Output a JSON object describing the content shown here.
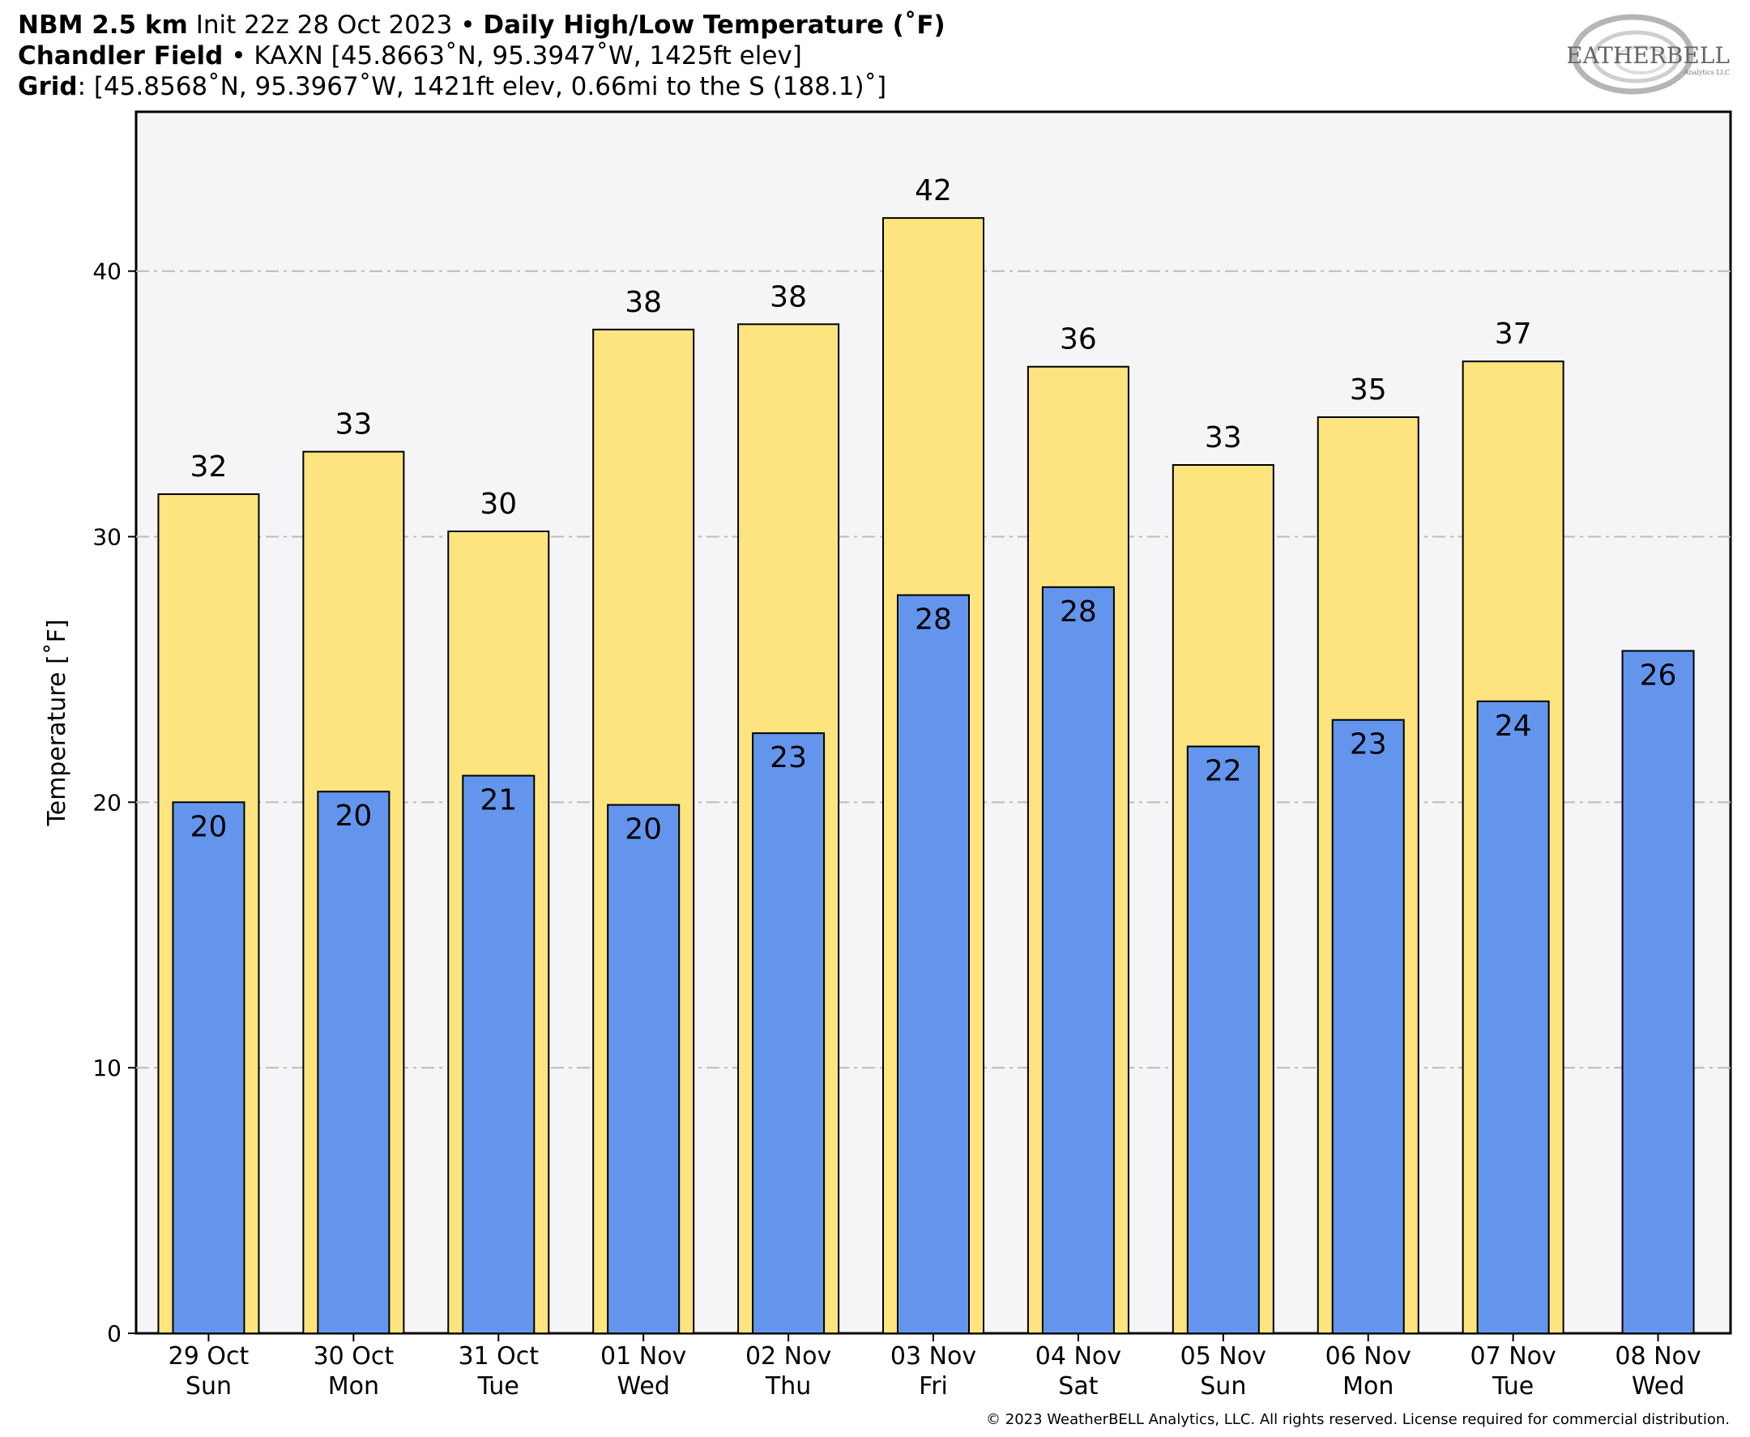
{
  "header": {
    "line1_model": "NBM 2.5 km",
    "line1_init": "Init 22z 28 Oct 2023",
    "line1_sep": "•",
    "line1_product": "Daily High/Low Temperature (˚F)",
    "line2_station": "Chandler Field",
    "line2_sep": "•",
    "line2_info": "KAXN [45.8663˚N, 95.3947˚W, 1425ft elev]",
    "line3_label": "Grid",
    "line3_info": ": [45.8568˚N, 95.3967˚W, 1421ft elev, 0.66mi to the S (188.1)˚]"
  },
  "logo": {
    "text": "WEATHERBELL",
    "subtext": "Analytics LLC"
  },
  "copyright": "© 2023 WeatherBELL Analytics, LLC. All rights reserved. License required for commercial distribution.",
  "colors": {
    "high": "#fde47f",
    "low": "#6495ed",
    "plot_bg": "#f5f5f7",
    "grid": "#bbbbbb"
  },
  "chart_data": {
    "type": "bar",
    "ylabel": "Temperature [˚F]",
    "ylim": [
      0,
      46
    ],
    "yticks": [
      0,
      10,
      20,
      30,
      40
    ],
    "grid": true,
    "categories": [
      [
        "29 Oct",
        "Sun"
      ],
      [
        "30 Oct",
        "Mon"
      ],
      [
        "31 Oct",
        "Tue"
      ],
      [
        "01 Nov",
        "Wed"
      ],
      [
        "02 Nov",
        "Thu"
      ],
      [
        "03 Nov",
        "Fri"
      ],
      [
        "04 Nov",
        "Sat"
      ],
      [
        "05 Nov",
        "Sun"
      ],
      [
        "06 Nov",
        "Mon"
      ],
      [
        "07 Nov",
        "Tue"
      ],
      [
        "08 Nov",
        "Wed"
      ]
    ],
    "series": [
      {
        "values": [
          31.6,
          33.2,
          30.2,
          37.8,
          38.0,
          42.0,
          36.4,
          32.7,
          34.5,
          36.6,
          null
        ],
        "labels": [
          "32",
          "33",
          "30",
          "38",
          "38",
          "42",
          "36",
          "33",
          "35",
          "37",
          ""
        ]
      },
      {
        "values": [
          20.0,
          20.4,
          21.0,
          19.9,
          22.6,
          27.8,
          28.1,
          22.1,
          23.1,
          23.8,
          25.7
        ],
        "labels": [
          "20",
          "20",
          "21",
          "20",
          "23",
          "28",
          "28",
          "22",
          "23",
          "24",
          "26"
        ]
      }
    ]
  }
}
